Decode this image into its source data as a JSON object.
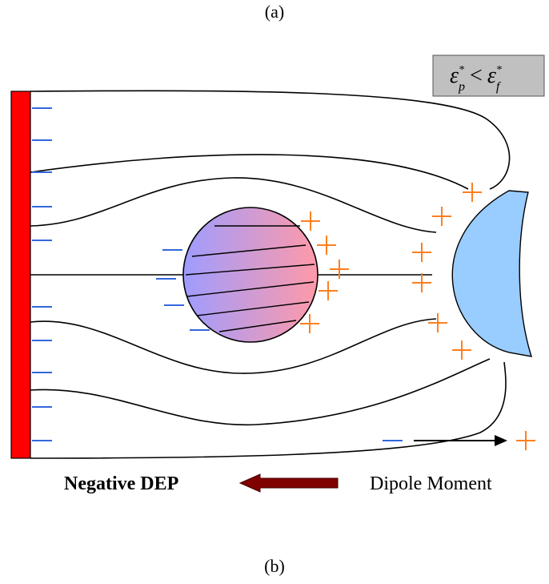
{
  "caption_top": "(a)",
  "formula": {
    "left_symbol": "ε",
    "left_sup": "*",
    "left_sub": "p",
    "relation": "<",
    "right_symbol": "ε",
    "right_sup": "*",
    "right_sub": "f"
  },
  "force_label": "Negative DEP",
  "dipole_label": "Dipole Moment",
  "caption_bottom": "(b)"
}
